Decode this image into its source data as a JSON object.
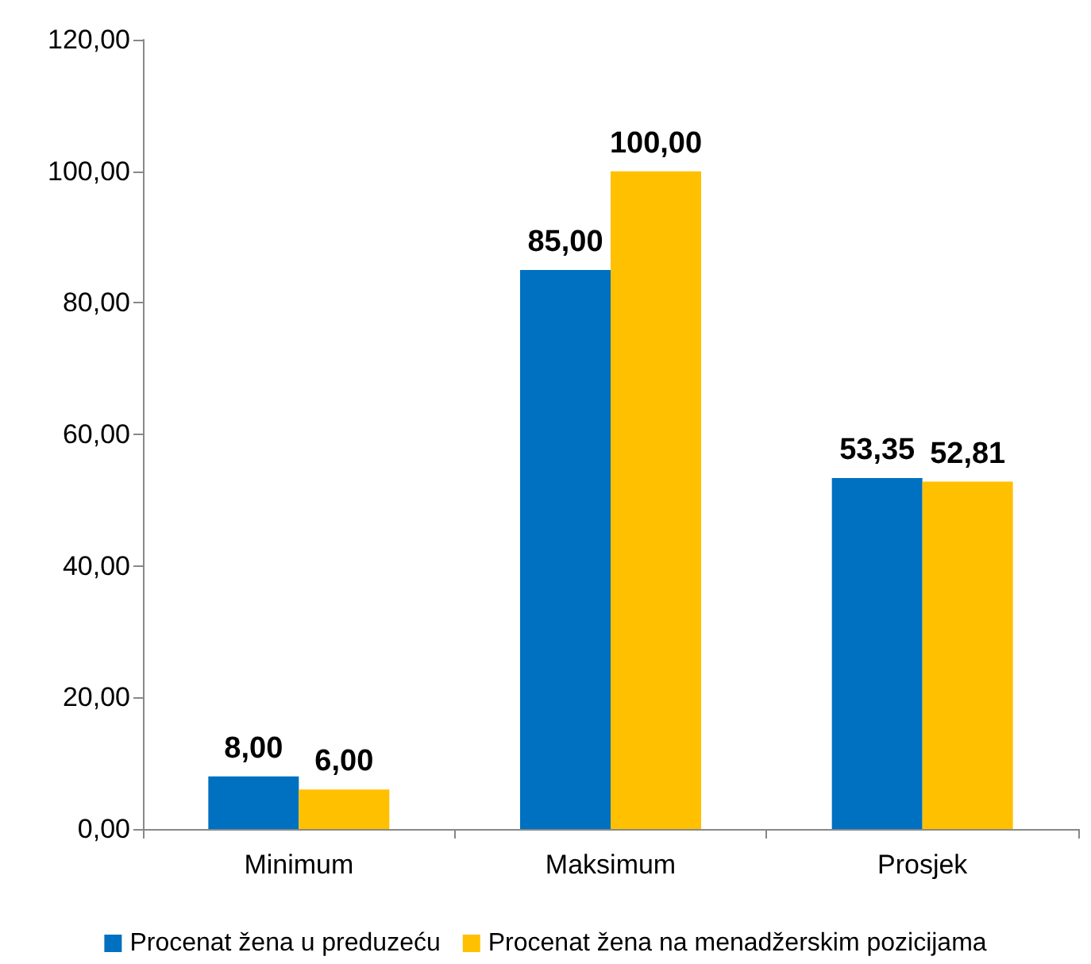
{
  "chart_data": {
    "type": "bar",
    "categories": [
      "Minimum",
      "Maksimum",
      "Prosjek"
    ],
    "series": [
      {
        "name": "Procenat žena u preduzeću",
        "color": "#0070c0",
        "values": [
          8,
          85,
          53.35
        ],
        "value_labels": [
          "8,00",
          "85,00",
          "53,35"
        ]
      },
      {
        "name": "Procenat žena na menadžerskim pozicijama",
        "color": "#ffc000",
        "values": [
          6,
          100,
          52.81
        ],
        "value_labels": [
          "6,00",
          "100,00",
          "52,81"
        ]
      }
    ],
    "ylim": [
      0,
      120
    ],
    "yticks": [
      {
        "value": 0,
        "label": "0,00"
      },
      {
        "value": 20,
        "label": "20,00"
      },
      {
        "value": 40,
        "label": "40,00"
      },
      {
        "value": 60,
        "label": "60,00"
      },
      {
        "value": 80,
        "label": "80,00"
      },
      {
        "value": 100,
        "label": "100,00"
      },
      {
        "value": 120,
        "label": "120,00"
      }
    ],
    "grid": false,
    "legend": "bottom"
  }
}
